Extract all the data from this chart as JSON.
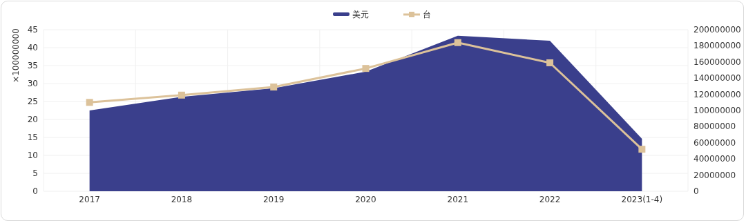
{
  "chart_data": {
    "type": "area",
    "ylabel": "×100000000",
    "categories": [
      "2017",
      "2018",
      "2019",
      "2020",
      "2021",
      "2022",
      "2023(1-4)"
    ],
    "series": [
      {
        "name": "美元",
        "type": "area",
        "color": "#3a3f8c",
        "values": [
          22.5,
          26.3,
          28.7,
          33.3,
          43.3,
          41.9,
          14.6
        ]
      },
      {
        "name": "台",
        "type": "line",
        "axis": "y2",
        "color": "#dcc29a",
        "marker": "square",
        "values": [
          110000000,
          119000000,
          129000000,
          152000000,
          184000000,
          159000000,
          52000000
        ]
      }
    ],
    "ylim": [
      0,
      45
    ],
    "yticks": [
      0,
      5,
      10,
      15,
      20,
      25,
      30,
      35,
      40,
      45
    ],
    "y2lim": [
      0,
      200000000
    ],
    "y2ticks": [
      0,
      20000000,
      40000000,
      60000000,
      80000000,
      100000000,
      120000000,
      140000000,
      160000000,
      180000000,
      200000000
    ],
    "grid": true,
    "legend": "top"
  }
}
